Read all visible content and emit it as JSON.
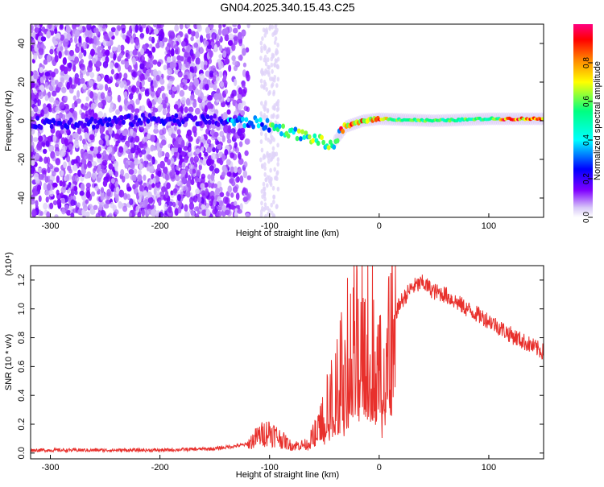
{
  "page_title": "GN04.2025.340.15.43.C25",
  "chart_data": [
    {
      "type": "heatmap",
      "title": "GN04.2025.340.15.43.C25",
      "xlabel": "Height of straight line (km)",
      "ylabel": "Frequency (Hz)",
      "xlim": [
        -318,
        150
      ],
      "ylim": [
        -50,
        50
      ],
      "x_ticks": [
        -300,
        -200,
        -100,
        0,
        100
      ],
      "y_ticks": [
        -40,
        -20,
        0,
        20,
        40
      ],
      "colorbar": {
        "label": "Normalized spectral amplitude",
        "range": [
          0,
          1
        ],
        "ticks": [
          0.0,
          0.2,
          0.4,
          0.6,
          0.8
        ],
        "stops": [
          "#ffffff",
          "#d8c8f8",
          "#8000ff",
          "#0000ff",
          "#00ffff",
          "#00ff80",
          "#ffff00",
          "#ff8000",
          "#ff0000",
          "#ff0080"
        ]
      },
      "ridge": [
        {
          "x": -260,
          "f": -1
        },
        {
          "x": -200,
          "f": 1
        },
        {
          "x": -150,
          "f": 0
        },
        {
          "x": -110,
          "f": -1
        },
        {
          "x": -80,
          "f": -6
        },
        {
          "x": -55,
          "f": -10
        },
        {
          "x": -45,
          "f": -14
        },
        {
          "x": -30,
          "f": -3
        },
        {
          "x": -15,
          "f": 0
        },
        {
          "x": 0,
          "f": 1
        },
        {
          "x": 50,
          "f": 0
        },
        {
          "x": 100,
          "f": 1
        },
        {
          "x": 150,
          "f": 1
        }
      ],
      "grid": false,
      "legend": "right"
    },
    {
      "type": "line",
      "xlabel": "Height of straight line (km)",
      "ylabel": "SNR (10 * v/v)",
      "scale_label": "(x10⁴)",
      "xlim": [
        -318,
        150
      ],
      "ylim": [
        -0.04,
        1.3
      ],
      "x_ticks": [
        -300,
        -200,
        -100,
        0,
        100
      ],
      "y_ticks": [
        0.0,
        0.2,
        0.4,
        0.6,
        0.8,
        1.0,
        1.2
      ],
      "color": "#e8302c",
      "series": [
        {
          "x": [
            -318,
            -260,
            -200,
            -150,
            -120,
            -110,
            -100,
            -90,
            -80,
            -65,
            -50,
            -40,
            -30,
            -20,
            -10,
            0,
            10,
            20,
            30,
            40,
            50,
            60,
            80,
            100,
            120,
            150
          ],
          "y": [
            0.02,
            0.02,
            0.02,
            0.03,
            0.06,
            0.12,
            0.15,
            0.1,
            0.05,
            0.06,
            0.25,
            0.45,
            0.65,
            0.8,
            0.9,
            0.6,
            0.9,
            1.05,
            1.15,
            1.18,
            1.12,
            1.1,
            1.0,
            0.92,
            0.82,
            0.7
          ]
        }
      ],
      "grid": false
    }
  ]
}
